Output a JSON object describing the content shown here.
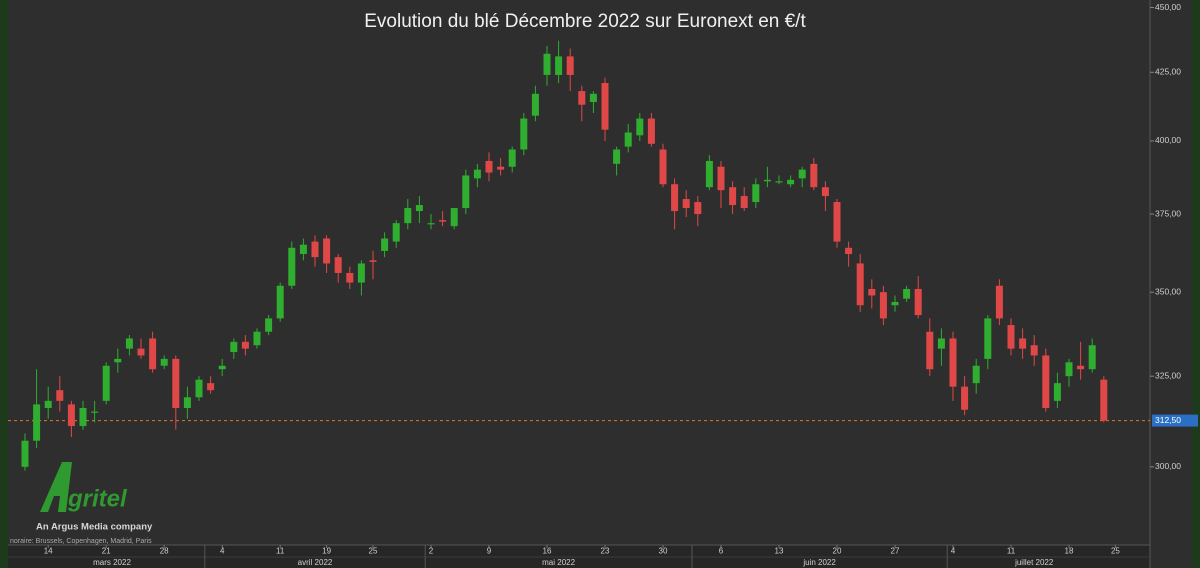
{
  "chart_data": {
    "type": "candlestick",
    "title": "Evolution du blé Décembre 2022 sur Euronext en €/t",
    "footnote": "noraire: Brussels, Copenhagen, Madrid, Paris",
    "log": true,
    "up_color": "#2fae2f",
    "down_color": "#e04848",
    "ylim": [
      280,
      453
    ],
    "yticks": [
      {
        "value": 300,
        "label": "300,00"
      },
      {
        "value": 325,
        "label": "325,00"
      },
      {
        "value": 350,
        "label": "350,00"
      },
      {
        "value": 375,
        "label": "375,00"
      },
      {
        "value": 400,
        "label": "400,00"
      },
      {
        "value": 425,
        "label": "425,00"
      },
      {
        "value": 450,
        "label": "450,00"
      }
    ],
    "last_price": {
      "value": 312.5,
      "label": "312,50"
    },
    "categories": [
      null,
      null,
      "14",
      null,
      null,
      null,
      null,
      "21",
      null,
      null,
      null,
      null,
      "28",
      null,
      null,
      null,
      null,
      "4",
      null,
      null,
      null,
      null,
      "11",
      null,
      null,
      null,
      "19",
      null,
      null,
      null,
      "25",
      null,
      null,
      null,
      null,
      "2",
      null,
      null,
      null,
      null,
      "9",
      null,
      null,
      null,
      null,
      "16",
      null,
      null,
      null,
      null,
      "23",
      null,
      null,
      null,
      null,
      "30",
      null,
      null,
      null,
      null,
      "6",
      null,
      null,
      null,
      null,
      "13",
      null,
      null,
      null,
      null,
      "20",
      null,
      null,
      null,
      null,
      "27",
      null,
      null,
      null,
      null,
      "4",
      null,
      null,
      null,
      null,
      "11",
      null,
      null,
      null,
      null,
      "18",
      null,
      null,
      null,
      "25"
    ],
    "months": [
      {
        "label": "mars 2022",
        "start": 0
      },
      {
        "label": "avril 2022",
        "start": 16
      },
      {
        "label": "mai 2022",
        "start": 35
      },
      {
        "label": "juin 2022",
        "start": 58
      },
      {
        "label": "juillet 2022",
        "start": 80
      }
    ],
    "open": [
      300,
      307,
      316,
      321,
      317,
      311,
      315,
      318,
      329,
      333,
      333,
      336,
      328,
      330,
      316,
      319,
      323,
      327,
      332,
      335,
      334,
      338,
      342,
      352,
      362,
      366,
      367,
      361,
      356,
      353,
      360,
      363,
      366,
      372,
      376,
      372,
      373,
      371,
      377,
      387,
      393,
      391,
      391,
      397,
      409,
      424,
      424,
      431,
      418,
      414,
      421,
      392,
      398,
      402,
      408,
      397,
      385,
      380,
      379,
      384,
      391,
      384,
      381,
      379,
      386,
      386,
      385,
      387,
      392,
      384,
      379,
      364,
      359,
      351,
      350,
      346,
      348,
      351,
      338,
      333,
      336,
      322,
      323,
      330,
      352,
      340,
      336,
      334,
      331,
      318,
      325,
      328,
      327,
      324,
      null
    ],
    "high": [
      309,
      327,
      322,
      325,
      318,
      318,
      318,
      329,
      333,
      337,
      336,
      338,
      331,
      331,
      322,
      325,
      325,
      330,
      336,
      337,
      339,
      343,
      353,
      366,
      367,
      368,
      368,
      362,
      358,
      360,
      363,
      369,
      373,
      380,
      381,
      375,
      376,
      377,
      390,
      392,
      396,
      394,
      398,
      410,
      420,
      435,
      437,
      434,
      420,
      418,
      423,
      398,
      406,
      410,
      410,
      399,
      387,
      383,
      381,
      395,
      393,
      386,
      384,
      387,
      391,
      388,
      388,
      391,
      394,
      386,
      380,
      366,
      362,
      354,
      352,
      349,
      352,
      355,
      342,
      339,
      338,
      325,
      330,
      343,
      354,
      342,
      339,
      337,
      333,
      326,
      330,
      335,
      336,
      325,
      null
    ],
    "low": [
      299,
      305,
      313,
      315,
      308,
      310,
      312,
      317,
      326,
      331,
      330,
      326,
      327,
      310,
      313,
      318,
      320,
      325,
      330,
      331,
      333,
      337,
      341,
      351,
      360,
      358,
      356,
      353,
      351,
      349,
      354,
      361,
      364,
      370,
      372,
      370,
      371,
      370,
      375,
      384,
      386,
      388,
      389,
      395,
      407,
      420,
      421,
      418,
      407,
      410,
      400,
      388,
      396,
      400,
      398,
      384,
      370,
      374,
      371,
      383,
      377,
      375,
      376,
      377,
      384,
      385,
      384,
      384,
      383,
      376,
      364,
      358,
      344,
      345,
      340,
      344,
      347,
      342,
      325,
      328,
      318,
      314,
      320,
      327,
      340,
      331,
      330,
      328,
      315,
      316,
      322,
      324,
      326,
      312,
      null
    ],
    "close": [
      307,
      317,
      318,
      318,
      311,
      316,
      315,
      328,
      330,
      336,
      331,
      327,
      330,
      316,
      319,
      324,
      321,
      328,
      335,
      333,
      338,
      342,
      352,
      364,
      365,
      361,
      359,
      356,
      353,
      359,
      359.5,
      367,
      372,
      377,
      378,
      372,
      372.5,
      377,
      388,
      390,
      389,
      390,
      397,
      408,
      417,
      432,
      431,
      424,
      413,
      417,
      404,
      397,
      403,
      408,
      399,
      385,
      376,
      377,
      375,
      393,
      383,
      378,
      377,
      385,
      386.5,
      386,
      386.5,
      390,
      384,
      381,
      366,
      362,
      346,
      349,
      342,
      347,
      351,
      343,
      327,
      336,
      322,
      315.5,
      328,
      342,
      342,
      333,
      333,
      331,
      316,
      323,
      329,
      327,
      334,
      312.5,
      null
    ]
  },
  "logo": {
    "name": "gritel",
    "tagline": "An Argus Media company"
  }
}
